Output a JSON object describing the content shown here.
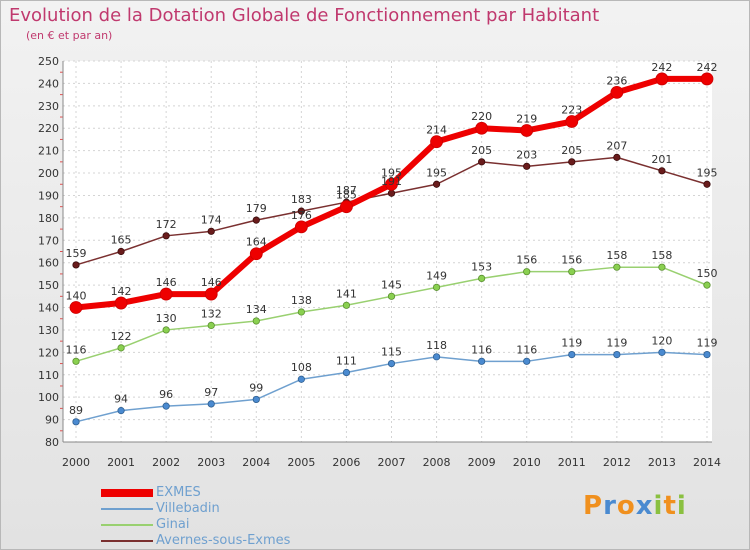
{
  "title": "Evolution de la Dotation Globale de Fonctionnement par Habitant",
  "subtitle": "(en € et par an)",
  "brand": {
    "text": "Proxiti",
    "letters": [
      {
        "ch": "P",
        "color": "#f0901e"
      },
      {
        "ch": "r",
        "color": "#4a8ad0"
      },
      {
        "ch": "o",
        "color": "#f0901e"
      },
      {
        "ch": "x",
        "color": "#4a8ad0"
      },
      {
        "ch": "i",
        "color": "#8ac040"
      },
      {
        "ch": "t",
        "color": "#f0901e"
      },
      {
        "ch": "i",
        "color": "#8ac040"
      }
    ]
  },
  "chart_data": {
    "type": "line",
    "title": "Evolution de la Dotation Globale de Fonctionnement par Habitant",
    "subtitle": "(en € et par an)",
    "xlabel": "",
    "ylabel": "",
    "categories": [
      "2000",
      "2001",
      "2002",
      "2003",
      "2004",
      "2005",
      "2006",
      "2007",
      "2008",
      "2009",
      "2010",
      "2011",
      "2012",
      "2013",
      "2014"
    ],
    "ylim": [
      80,
      250
    ],
    "yticks": [
      80,
      90,
      100,
      110,
      120,
      130,
      140,
      150,
      160,
      170,
      180,
      190,
      200,
      210,
      220,
      230,
      240,
      250
    ],
    "grid": true,
    "legend_position": "bottom-left",
    "series": [
      {
        "name": "EXMES",
        "color": "#ee0000",
        "values": [
          140,
          142,
          146,
          146,
          164,
          176,
          185,
          195,
          214,
          220,
          219,
          223,
          236,
          242,
          242
        ]
      },
      {
        "name": "Villebadin",
        "color": "#6fa0cf",
        "values": [
          89,
          94,
          96,
          97,
          99,
          108,
          111,
          115,
          118,
          116,
          116,
          119,
          119,
          120,
          119
        ]
      },
      {
        "name": "Ginai",
        "color": "#99d070",
        "values": [
          116,
          122,
          130,
          132,
          134,
          138,
          141,
          145,
          149,
          153,
          156,
          156,
          158,
          158,
          150
        ]
      },
      {
        "name": "Avernes-sous-Exmes",
        "color": "#7a3030",
        "values": [
          159,
          165,
          172,
          174,
          179,
          183,
          187,
          191,
          195,
          205,
          203,
          205,
          207,
          201,
          195
        ]
      }
    ],
    "data_labels": {
      "EXMES": [
        "140",
        "142",
        "146",
        "146",
        "164",
        "176",
        "185",
        "195",
        "214",
        "220",
        "219",
        "223",
        "236",
        "242",
        "242"
      ],
      "Villebadin": [
        "89",
        "94",
        "96",
        "97",
        "99",
        "108",
        "111",
        "115",
        "118",
        "116",
        "116",
        "119",
        "119",
        "120",
        "119"
      ],
      "Ginai": [
        "116",
        "122",
        "130",
        "132",
        "134",
        "138",
        "141",
        "145",
        "149",
        "153",
        "156",
        "156",
        "158",
        "158",
        "150"
      ],
      "Avernes-sous-Exmes": [
        "159",
        "165",
        "172",
        "174",
        "179",
        "183",
        "187",
        "191",
        "195",
        "205",
        "203",
        "205",
        "207",
        "201",
        "195"
      ]
    }
  }
}
